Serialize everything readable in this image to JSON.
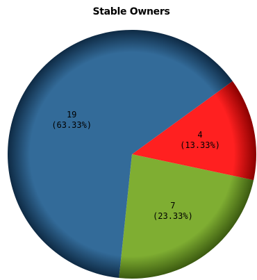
{
  "chart_data": {
    "type": "pie",
    "title": "Stable Owners",
    "slices": [
      {
        "value": 4,
        "value_label": "4",
        "percent_label": "(13.33%)",
        "color": "#ff2020",
        "edge": "#8a0000"
      },
      {
        "value": 7,
        "value_label": "7",
        "percent_label": "(23.33%)",
        "color": "#7fae32",
        "edge": "#3b5a10"
      },
      {
        "value": 19,
        "value_label": "19",
        "percent_label": "(63.33%)",
        "color": "#336b99",
        "edge": "#0e2a44"
      }
    ],
    "start_angle_deg": -36,
    "direction": "clockwise",
    "legend": "none"
  }
}
